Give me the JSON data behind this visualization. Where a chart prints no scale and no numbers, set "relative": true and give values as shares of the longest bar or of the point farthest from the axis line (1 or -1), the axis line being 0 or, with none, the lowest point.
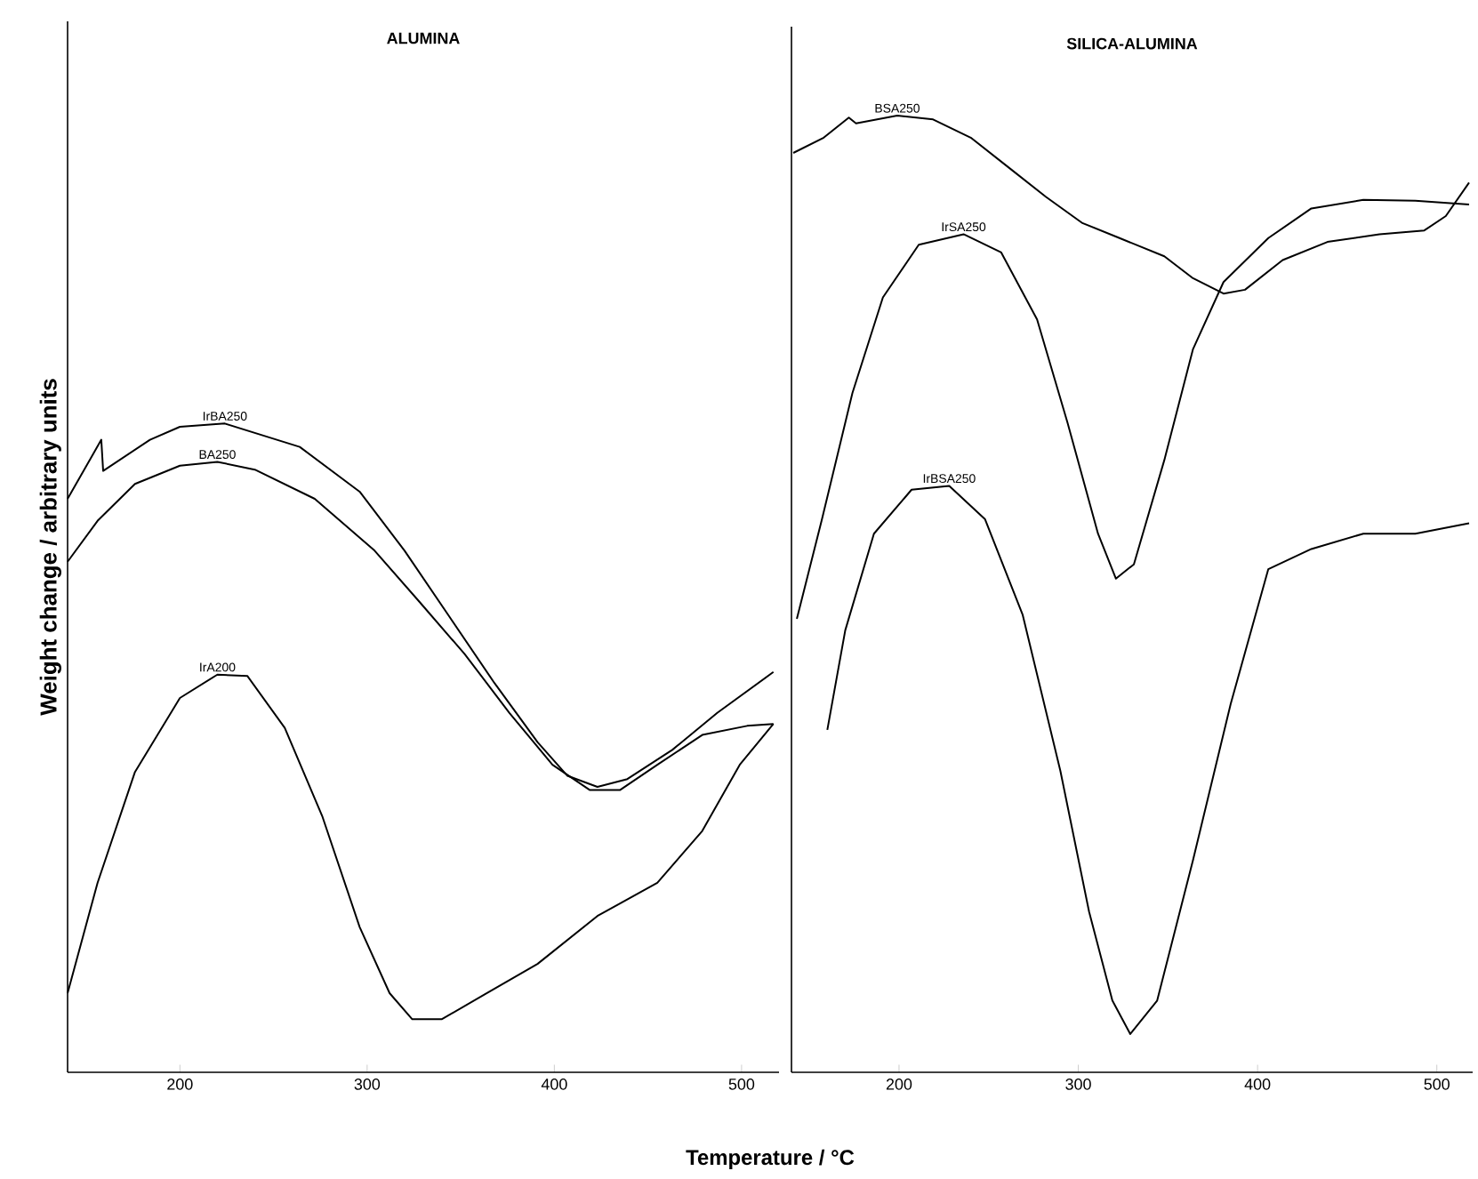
{
  "chart_data": [
    {
      "type": "line",
      "title": "ALUMINA",
      "xlabel": "Temperature / °C",
      "ylabel": "Weight change / arbitrary units",
      "relative": true,
      "tick_labels": "x",
      "xlim": [
        140,
        520
      ],
      "xticks": [
        200,
        300,
        400,
        500
      ],
      "series": [
        {
          "name": "IrBA250",
          "color": "#000000",
          "x": [
            140,
            158,
            159,
            184,
            200,
            224,
            264,
            296,
            320,
            344,
            368,
            391,
            407,
            423,
            439,
            463,
            487,
            517
          ],
          "values": [
            0.884,
            0.975,
            0.927,
            0.975,
            0.995,
            1.0,
            0.964,
            0.895,
            0.804,
            0.702,
            0.6,
            0.509,
            0.457,
            0.44,
            0.452,
            0.497,
            0.554,
            0.617
          ]
        },
        {
          "name": "BA250",
          "color": "#000000",
          "x": [
            140,
            156,
            176,
            200,
            220,
            240,
            272,
            304,
            328,
            352,
            376,
            399,
            419,
            435,
            455,
            479,
            503,
            517
          ],
          "values": [
            0.787,
            0.85,
            0.907,
            0.935,
            0.941,
            0.929,
            0.884,
            0.804,
            0.725,
            0.645,
            0.554,
            0.474,
            0.435,
            0.435,
            0.474,
            0.52,
            0.534,
            0.537
          ]
        },
        {
          "name": "IrA200",
          "color": "#000000",
          "x": [
            140,
            156,
            176,
            200,
            220,
            236,
            256,
            276,
            296,
            312,
            324,
            340,
            364,
            391,
            423,
            455,
            479,
            499,
            517
          ],
          "values": [
            0.122,
            0.292,
            0.463,
            0.577,
            0.613,
            0.611,
            0.531,
            0.395,
            0.224,
            0.122,
            0.082,
            0.082,
            0.122,
            0.167,
            0.241,
            0.292,
            0.372,
            0.474,
            0.537
          ]
        }
      ]
    },
    {
      "type": "line",
      "title": "SILICA-ALUMINA",
      "relative": true,
      "tick_labels": "x",
      "xlim": [
        140,
        520
      ],
      "xticks": [
        200,
        300,
        400,
        500
      ],
      "series": [
        {
          "name": "BSA250",
          "color": "#000000",
          "x": [
            141,
            158,
            172,
            176,
            199,
            219,
            240,
            261,
            282,
            302,
            323,
            348,
            364,
            381,
            393,
            414,
            439,
            468,
            493,
            505,
            518
          ],
          "values": [
            0.961,
            0.977,
            0.998,
            0.992,
            1.0,
            0.996,
            0.977,
            0.946,
            0.915,
            0.888,
            0.872,
            0.853,
            0.83,
            0.814,
            0.818,
            0.849,
            0.868,
            0.876,
            0.88,
            0.895,
            0.93
          ]
        },
        {
          "name": "IrSA250",
          "color": "#000000",
          "x": [
            143,
            157,
            174,
            191,
            211,
            236,
            257,
            277,
            294,
            311,
            321,
            331,
            348,
            364,
            381,
            406,
            430,
            459,
            488,
            518
          ],
          "values": [
            0.474,
            0.578,
            0.71,
            0.81,
            0.865,
            0.876,
            0.857,
            0.787,
            0.679,
            0.563,
            0.516,
            0.531,
            0.64,
            0.756,
            0.826,
            0.872,
            0.903,
            0.912,
            0.911,
            0.907
          ]
        },
        {
          "name": "IrBSA250",
          "color": "#000000",
          "x": [
            160,
            170,
            186,
            207,
            228,
            248,
            269,
            290,
            306,
            319,
            329,
            344,
            364,
            385,
            406,
            430,
            459,
            488,
            518
          ],
          "values": [
            0.358,
            0.462,
            0.563,
            0.609,
            0.613,
            0.578,
            0.478,
            0.315,
            0.168,
            0.075,
            0.04,
            0.075,
            0.222,
            0.385,
            0.526,
            0.547,
            0.563,
            0.563,
            0.574
          ]
        }
      ]
    }
  ]
}
